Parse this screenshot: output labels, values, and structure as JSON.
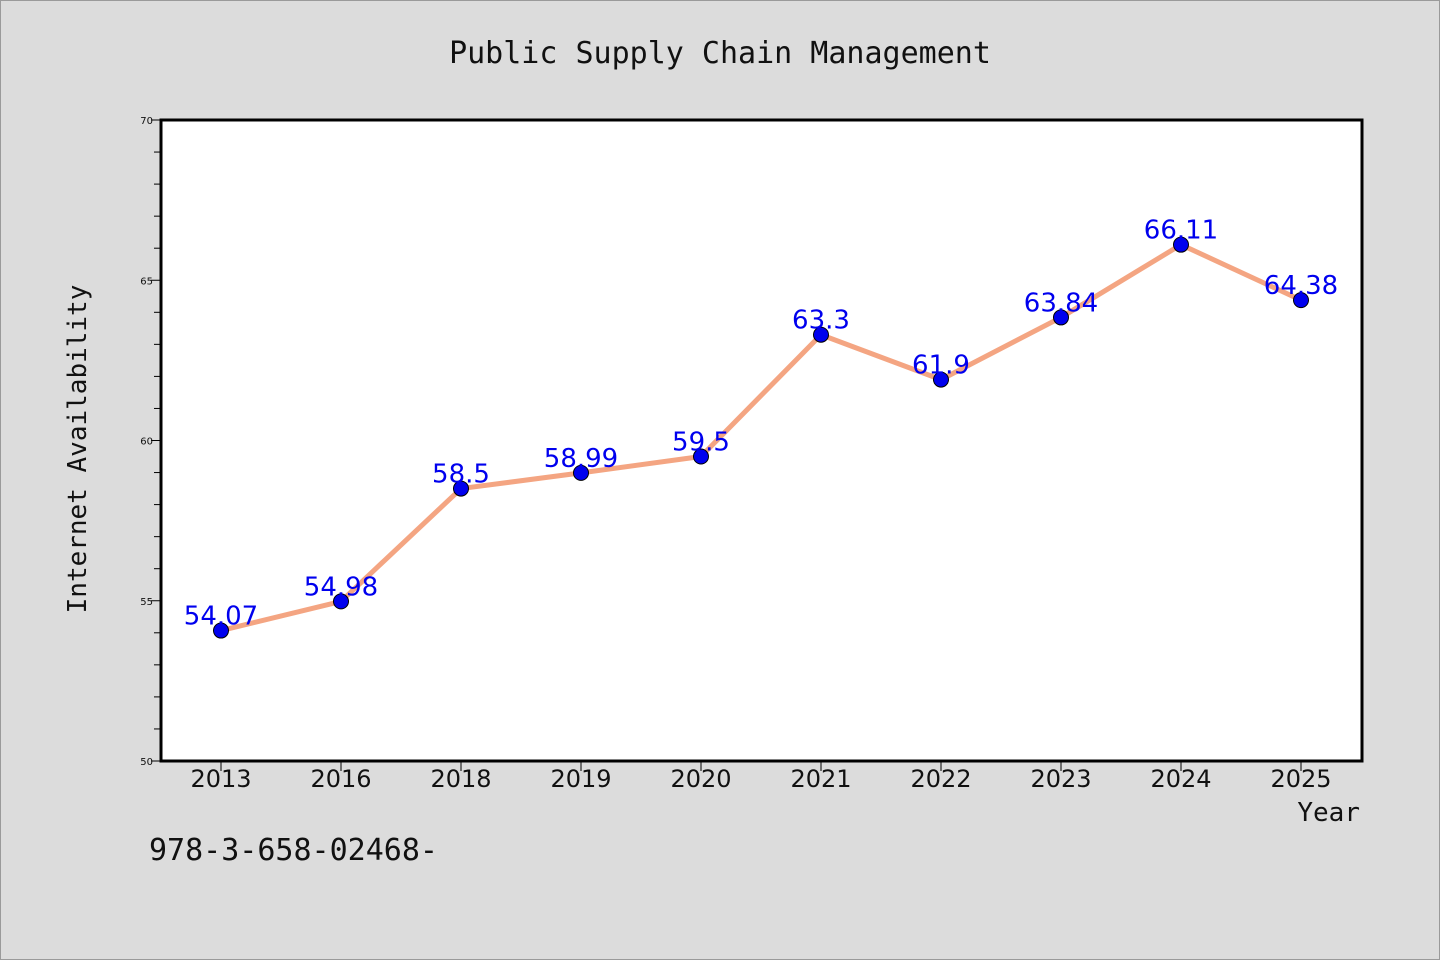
{
  "chart_data": {
    "type": "line",
    "title": "Public Supply Chain Management",
    "xlabel": "Year",
    "ylabel": "Internet Availability",
    "categories": [
      "2013",
      "2016",
      "2018",
      "2019",
      "2020",
      "2021",
      "2022",
      "2023",
      "2024",
      "2025"
    ],
    "series": [
      {
        "values": [
          54.07,
          54.98,
          58.5,
          58.99,
          59.5,
          63.3,
          61.9,
          63.84,
          66.11,
          64.38
        ]
      }
    ],
    "data_labels": [
      "54.07",
      "54.98",
      "58.5",
      "58.99",
      "59.5",
      "63.3",
      "61.9",
      "63.84",
      "66.11",
      "64.38"
    ],
    "ylim": [
      50,
      70
    ],
    "yticks": [
      50,
      55,
      60,
      65,
      70
    ],
    "grid": false,
    "line_color": "#f4a582",
    "marker_color": "#0000ee",
    "label_color": "#0000ee",
    "plot_background": "#ffffff",
    "figure_background": "#dcdcdc"
  },
  "footer": {
    "text": "978-3-658-02468-"
  }
}
